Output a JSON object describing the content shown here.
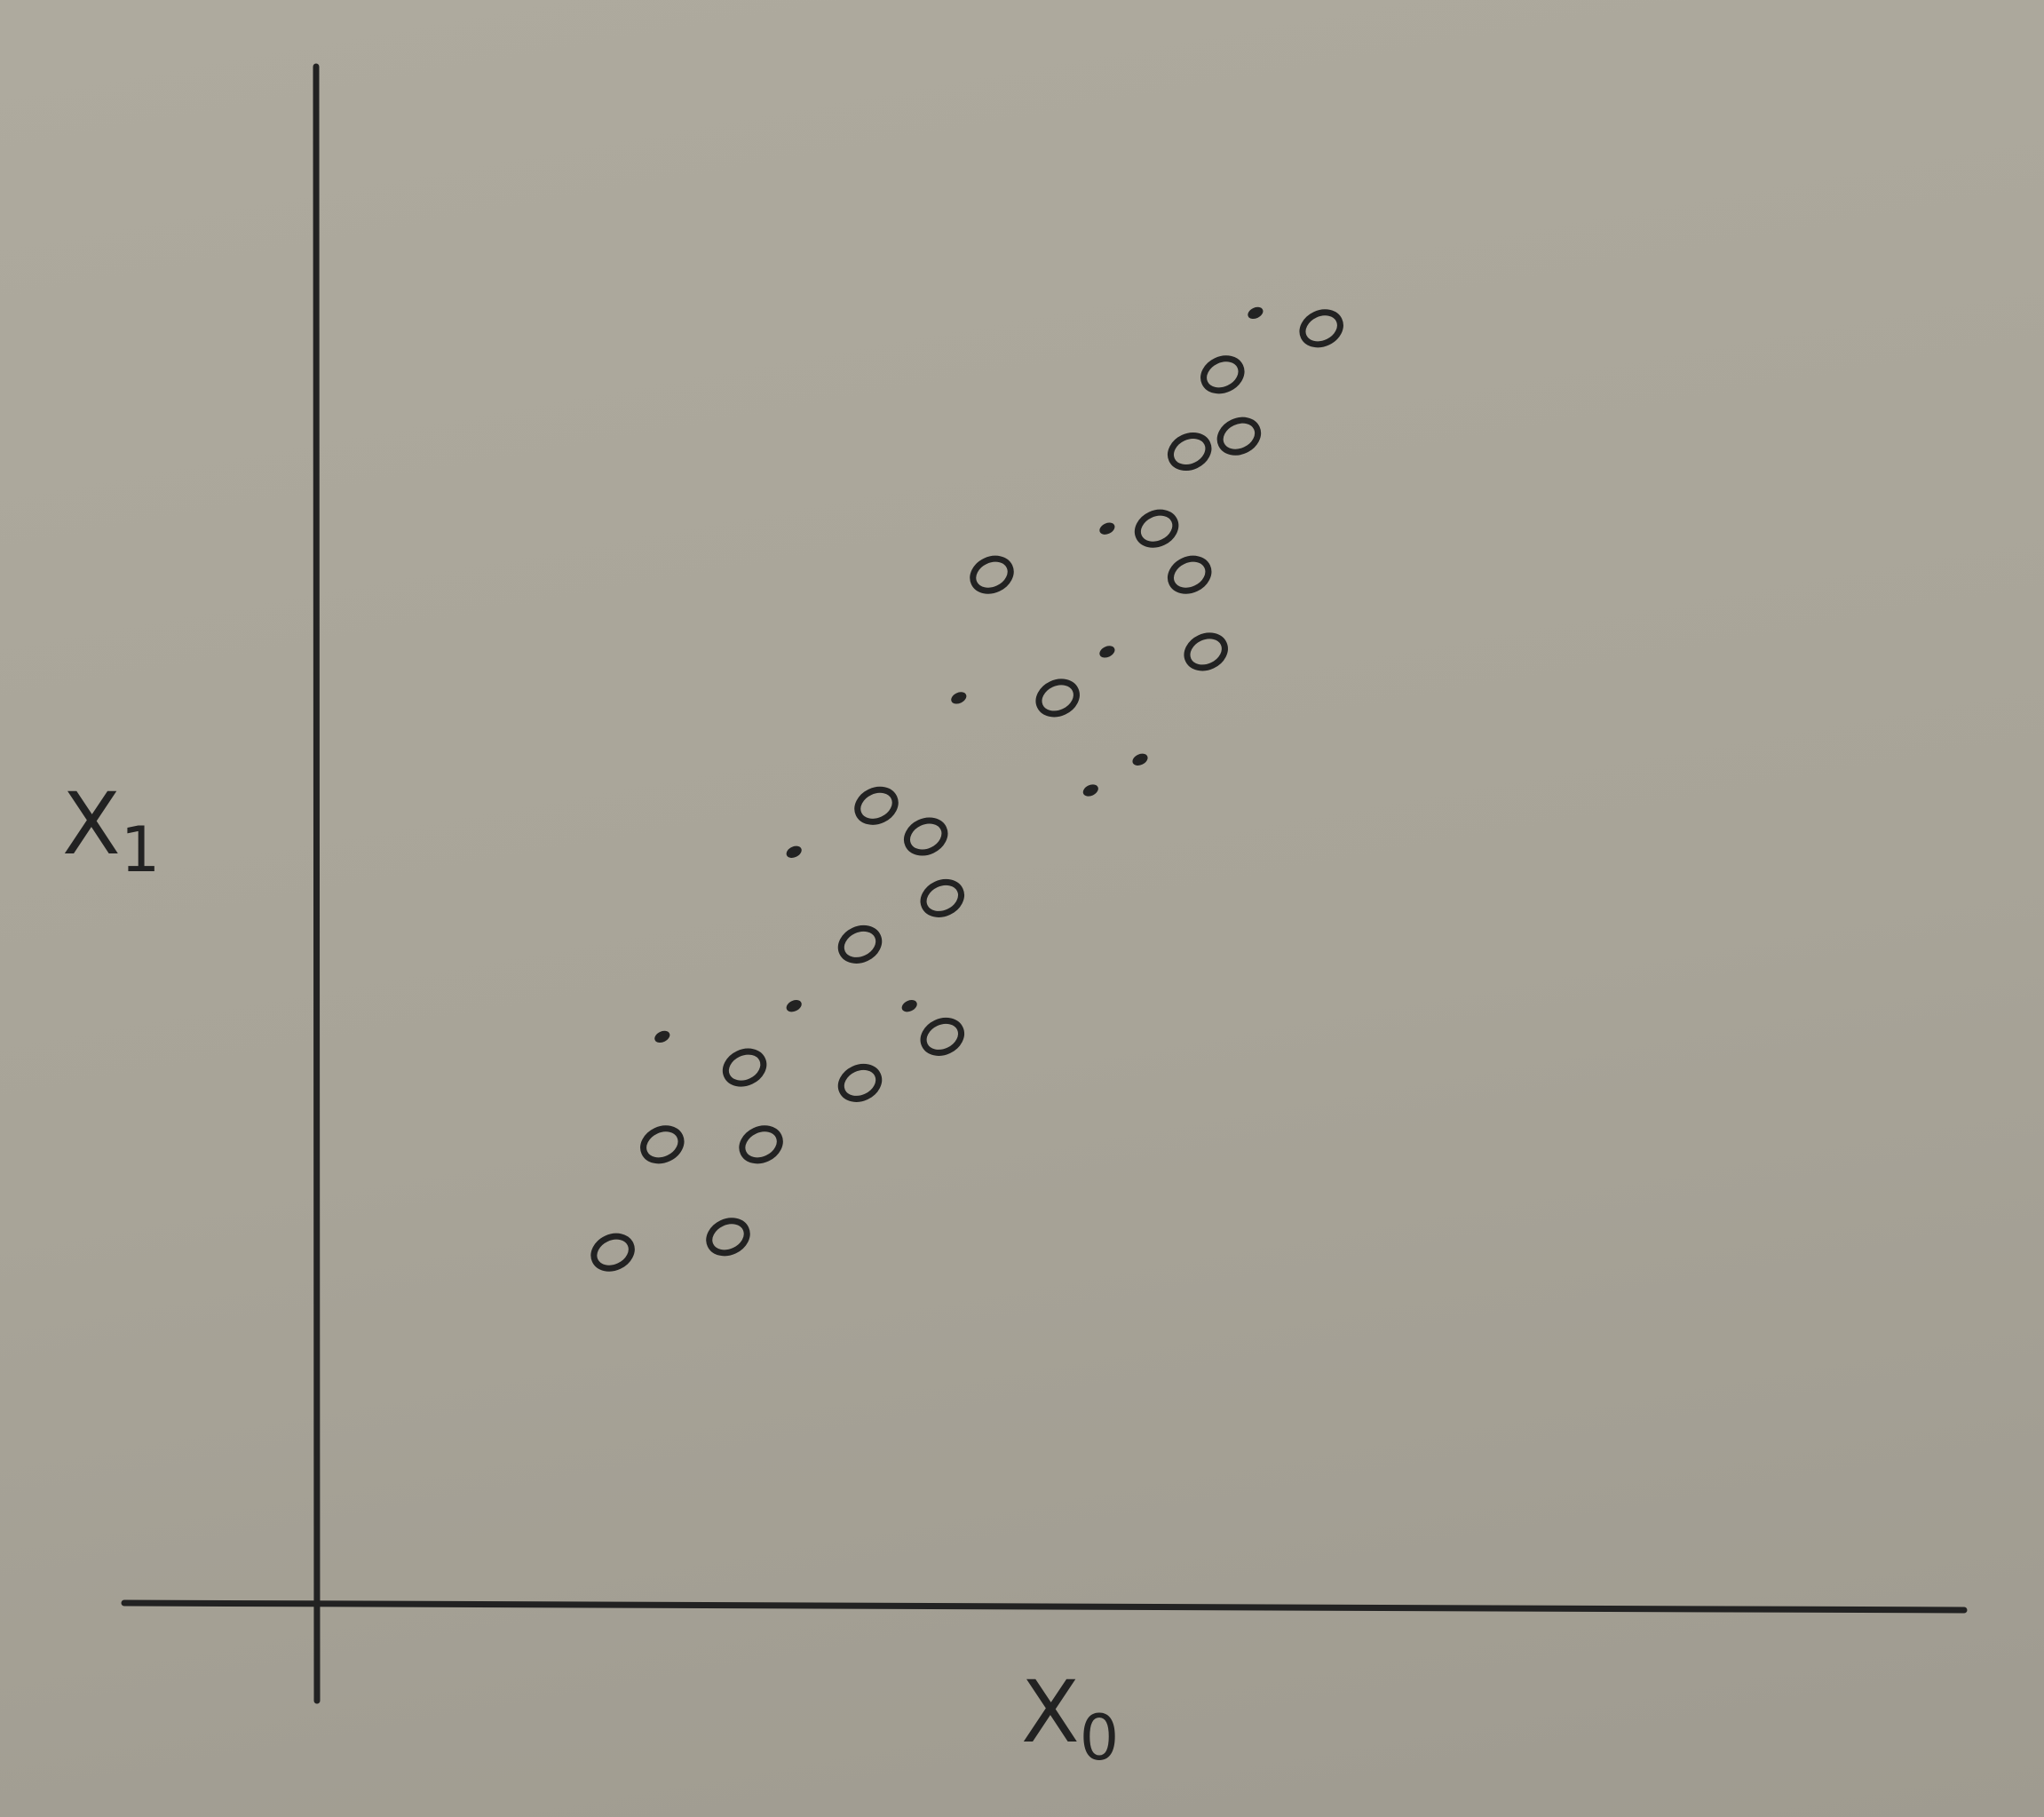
{
  "chart_data": {
    "type": "scatter",
    "title": "",
    "xlabel": "X",
    "xlabel_subscript": "0",
    "ylabel": "X",
    "ylabel_subscript": "1",
    "xlim": [
      0,
      100
    ],
    "ylim": [
      0,
      100
    ],
    "grid": false,
    "legend": "none",
    "ink_color": "#222222",
    "points": [
      {
        "x": 18,
        "y": 23,
        "style": "ring"
      },
      {
        "x": 25,
        "y": 24,
        "style": "ring"
      },
      {
        "x": 21,
        "y": 30,
        "style": "ring"
      },
      {
        "x": 27,
        "y": 30,
        "style": "ring"
      },
      {
        "x": 26,
        "y": 35,
        "style": "ring"
      },
      {
        "x": 21,
        "y": 37,
        "style": "dot"
      },
      {
        "x": 29,
        "y": 39,
        "style": "dot"
      },
      {
        "x": 33,
        "y": 34,
        "style": "ring"
      },
      {
        "x": 33,
        "y": 43,
        "style": "ring"
      },
      {
        "x": 29,
        "y": 49,
        "style": "dot"
      },
      {
        "x": 34,
        "y": 52,
        "style": "ring"
      },
      {
        "x": 37,
        "y": 50,
        "style": "ring"
      },
      {
        "x": 38,
        "y": 46,
        "style": "ring"
      },
      {
        "x": 36,
        "y": 39,
        "style": "dot"
      },
      {
        "x": 38,
        "y": 37,
        "style": "ring"
      },
      {
        "x": 39,
        "y": 59,
        "style": "dot"
      },
      {
        "x": 41,
        "y": 67,
        "style": "ring"
      },
      {
        "x": 45,
        "y": 59,
        "style": "ring"
      },
      {
        "x": 47,
        "y": 53,
        "style": "dot"
      },
      {
        "x": 48,
        "y": 62,
        "style": "dot"
      },
      {
        "x": 48,
        "y": 70,
        "style": "dot"
      },
      {
        "x": 50,
        "y": 55,
        "style": "dot"
      },
      {
        "x": 51,
        "y": 70,
        "style": "ring"
      },
      {
        "x": 53,
        "y": 75,
        "style": "ring"
      },
      {
        "x": 53,
        "y": 67,
        "style": "ring"
      },
      {
        "x": 54,
        "y": 62,
        "style": "ring"
      },
      {
        "x": 55,
        "y": 80,
        "style": "ring"
      },
      {
        "x": 56,
        "y": 76,
        "style": "ring"
      },
      {
        "x": 57,
        "y": 84,
        "style": "dot"
      },
      {
        "x": 61,
        "y": 83,
        "style": "ring"
      }
    ]
  }
}
